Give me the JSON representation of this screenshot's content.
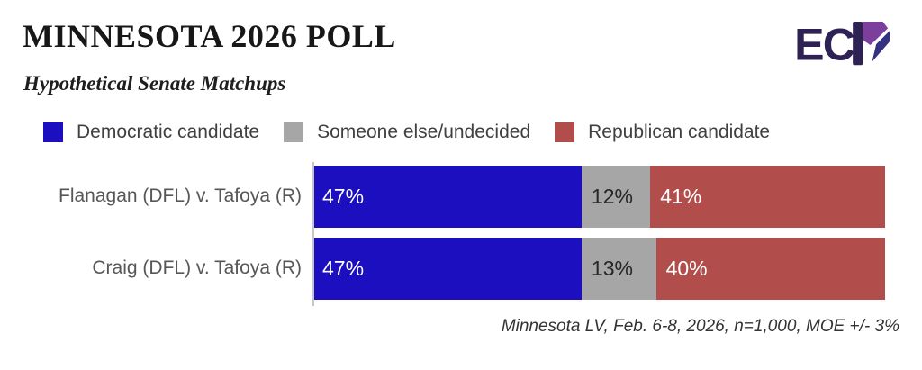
{
  "header": {
    "title": "MINNESOTA 2026 POLL",
    "subtitle": "Hypothetical Senate Matchups",
    "logo": {
      "text": "EC",
      "mark": "P",
      "dark_color": "#2e2153",
      "purple_color": "#7c3f9c",
      "navy_color": "#333180"
    }
  },
  "legend": [
    {
      "label": "Democratic candidate",
      "color": "#1c0fc0"
    },
    {
      "label": "Someone else/undecided",
      "color": "#a6a6a6"
    },
    {
      "label": "Republican candidate",
      "color": "#b14d4b"
    }
  ],
  "chart_data": {
    "type": "bar",
    "orientation": "horizontal",
    "stacked": true,
    "title": "MINNESOTA 2026 POLL",
    "subtitle": "Hypothetical Senate Matchups",
    "categories": [
      "Flanagan (DFL) v. Tafoya (R)",
      "Craig (DFL) v. Tafoya (R)"
    ],
    "series": [
      {
        "name": "Democratic candidate",
        "color": "#1c0fc0",
        "label_color": "#ffffff",
        "values": [
          47,
          47
        ]
      },
      {
        "name": "Someone else/undecided",
        "color": "#a6a6a6",
        "label_color": "#262626",
        "values": [
          12,
          13
        ]
      },
      {
        "name": "Republican candidate",
        "color": "#b14d4b",
        "label_color": "#ffffff",
        "values": [
          41,
          40
        ]
      }
    ],
    "value_suffix": "%",
    "xlim": [
      0,
      100
    ],
    "grid": false,
    "legend_position": "top",
    "data_labels": true
  },
  "footer": {
    "note": "Minnesota LV, Feb. 6-8, 2026, n=1,000, MOE +/- 3%"
  }
}
